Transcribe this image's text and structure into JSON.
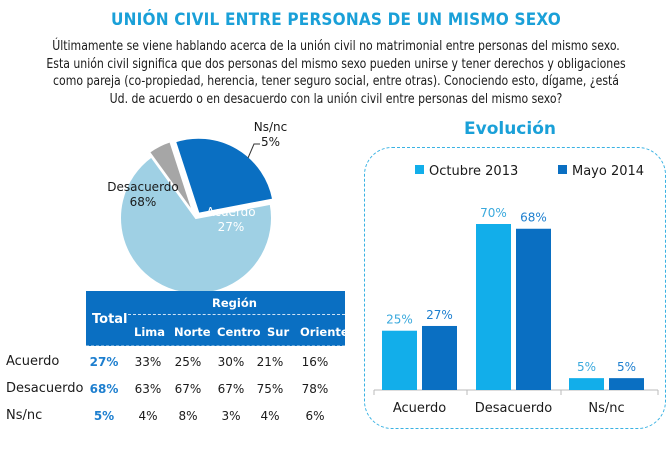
{
  "title": "UNIÓN CIVIL ENTRE PERSONAS DE UN MISMO SEXO",
  "question_lines": [
    "Últimamente se viene hablando acerca de la unión civil no matrimonial entre personas del mismo sexo.",
    "Esta unión civil significa que dos personas del mismo sexo pueden unirse y tener derechos y obligaciones",
    "como pareja (co-propiedad, herencia, tener seguro social, entre otras). Conociendo esto, dígame, ¿está",
    "Ud. de acuerdo o en desacuerdo con la unión civil entre personas del mismo sexo?"
  ],
  "colors": {
    "title": "#1aa0d8",
    "acuerdo": "#0a6fc2",
    "desacuerdo": "#9fd0e4",
    "nsnc": "#a6a6a6",
    "octubre": "#12aeea",
    "mayo": "#0a6fc2",
    "total_text": "#1e7fcf"
  },
  "chart_data": [
    {
      "type": "pie",
      "title": "",
      "slices": [
        {
          "label": "Acuerdo",
          "value": 27,
          "display": "27%"
        },
        {
          "label": "Desacuerdo",
          "value": 68,
          "display": "68%"
        },
        {
          "label": "Ns/nc",
          "value": 5,
          "display": "5%"
        }
      ]
    },
    {
      "type": "table",
      "title": "Región",
      "columns": [
        "Total",
        "Lima",
        "Norte",
        "Centro",
        "Sur",
        "Oriente"
      ],
      "group_header": "Región",
      "rows": [
        {
          "label": "Acuerdo",
          "values": [
            "27%",
            "33%",
            "25%",
            "30%",
            "21%",
            "16%"
          ]
        },
        {
          "label": "Desacuerdo",
          "values": [
            "68%",
            "63%",
            "67%",
            "67%",
            "75%",
            "78%"
          ]
        },
        {
          "label": "Ns/nc",
          "values": [
            "5%",
            "4%",
            "8%",
            "3%",
            "4%",
            "6%"
          ]
        }
      ]
    },
    {
      "type": "bar",
      "title": "Evolución",
      "categories": [
        "Acuerdo",
        "Desacuerdo",
        "Ns/nc"
      ],
      "series": [
        {
          "name": "Octubre 2013",
          "values": [
            25,
            70,
            5
          ],
          "labels": [
            "25%",
            "70%",
            "5%"
          ]
        },
        {
          "name": "Mayo 2014",
          "values": [
            27,
            68,
            5
          ],
          "labels": [
            "27%",
            "68%",
            "5%"
          ]
        }
      ],
      "ylim": [
        0,
        70
      ],
      "legend": "top",
      "grid": false
    }
  ]
}
